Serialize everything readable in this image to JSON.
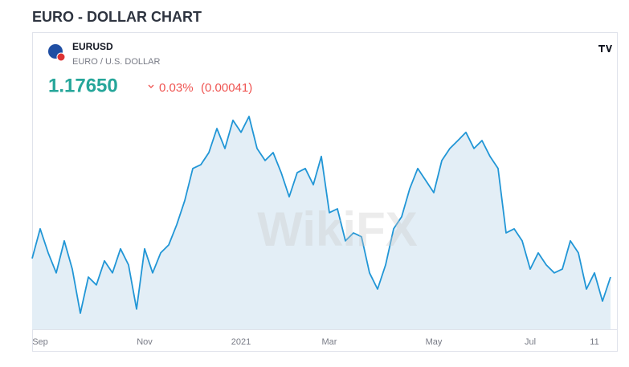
{
  "header": {
    "title": "EURO - DOLLAR CHART"
  },
  "widget": {
    "symbol": "EURUSD",
    "description": "EURO / U.S. DOLLAR",
    "price": "1.17650",
    "change_percent": "0.03%",
    "change_value": "(0.00041)",
    "watermark": "WikiFX"
  },
  "chart_data": {
    "type": "line",
    "color": "#2196d6",
    "categories": [
      null,
      "Sep",
      null,
      null,
      null,
      null,
      null,
      null,
      null,
      null,
      null,
      null,
      null,
      null,
      "Nov",
      null,
      null,
      null,
      null,
      null,
      null,
      null,
      null,
      null,
      null,
      null,
      "2021",
      null,
      null,
      null,
      null,
      null,
      null,
      null,
      null,
      null,
      null,
      "Mar",
      null,
      null,
      null,
      null,
      null,
      null,
      null,
      null,
      null,
      null,
      null,
      null,
      "May",
      null,
      null,
      null,
      null,
      null,
      null,
      null,
      null,
      null,
      null,
      null,
      "Jul",
      null,
      null,
      null,
      null,
      null,
      null,
      null,
      "11",
      null,
      null
    ],
    "values": [
      1.1835,
      1.1936,
      1.1854,
      1.1786,
      1.1895,
      1.1799,
      1.1649,
      1.1772,
      1.1745,
      1.1827,
      1.1786,
      1.1868,
      1.1813,
      1.1663,
      1.1868,
      1.1786,
      1.1854,
      1.1881,
      1.195,
      1.2032,
      1.2141,
      1.2154,
      1.2195,
      1.2277,
      1.2209,
      1.2305,
      1.2264,
      1.2318,
      1.2209,
      1.2168,
      1.2195,
      1.2127,
      1.2045,
      1.2127,
      1.2141,
      1.2086,
      1.2182,
      1.1991,
      1.2004,
      1.1895,
      1.1922,
      1.1909,
      1.1786,
      1.1731,
      1.1813,
      1.1936,
      1.1977,
      1.2072,
      1.2141,
      1.21,
      1.2059,
      1.2168,
      1.2209,
      1.2236,
      1.2264,
      1.2209,
      1.2236,
      1.2182,
      1.2141,
      1.1922,
      1.1936,
      1.1895,
      1.1799,
      1.1854,
      1.1813,
      1.1786,
      1.1799,
      1.1895,
      1.1854,
      1.1731,
      1.1786,
      1.169,
      1.1772
    ]
  }
}
